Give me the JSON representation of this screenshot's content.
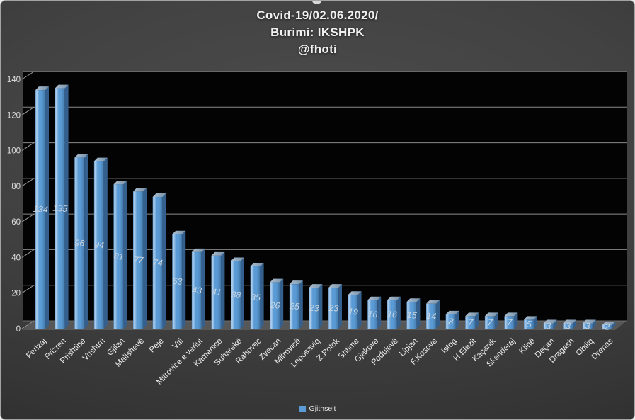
{
  "title": {
    "line1": "Covid-19/02.06.2020/",
    "line2": "Burimi: IKSHPK",
    "line3": "@fhoti"
  },
  "legend": {
    "label": "Gjithsejt"
  },
  "chart_data": {
    "type": "bar",
    "title": "Covid-19/02.06.2020/ Burimi: IKSHPK @fhoti",
    "categories": [
      "Ferizaj",
      "Prizren",
      "Prishtine",
      "Vushtrri",
      "Gjilan",
      "Malishevë",
      "Peje",
      "Viti",
      "Mitrovice e veriut",
      "Kamenice",
      "Suharekë",
      "Rahovec",
      "Zvecan",
      "Mitrovicë",
      "Leposaviq",
      "Z.Potok",
      "Shtime",
      "Gjakove",
      "Podujevë",
      "Lipjan",
      "F.Kosove",
      "Istog",
      "H.Elezit",
      "Kaçanik",
      "Skenderaj",
      "Klinë",
      "Deçan",
      "Dragash",
      "Obiliq",
      "Drenas"
    ],
    "series": [
      {
        "name": "Gjithsejt",
        "values": [
          134,
          135,
          96,
          94,
          81,
          77,
          74,
          53,
          43,
          41,
          38,
          35,
          26,
          25,
          23,
          23,
          19,
          16,
          16,
          15,
          14,
          8,
          7,
          7,
          7,
          5,
          3,
          3,
          3,
          2
        ]
      }
    ],
    "xlabel": "",
    "ylabel": "",
    "ylim": [
      0,
      140
    ],
    "yticks": [
      0,
      20,
      40,
      60,
      80,
      100,
      120,
      140
    ],
    "grid": true,
    "legend_position": "bottom",
    "style": "3d-column-black-plot",
    "colors": {
      "bar": "#5b9bd5",
      "bar_highlight": "#aecfee",
      "bar_edge_light": "#8fbbe4",
      "bar_shadow": "#3c6f9f",
      "bar_side": "#35608d",
      "bar_cap_light": "#aebfd0",
      "bar_cap_dark": "#7691a9",
      "plot_background": "#030303",
      "floor": "#575757",
      "gridline": "#8a8a8a",
      "tick": "#9b9b9b",
      "axis_text": "#dcdcdc",
      "category_text": "#ececec",
      "value_label_text": "#ccd6df"
    }
  }
}
